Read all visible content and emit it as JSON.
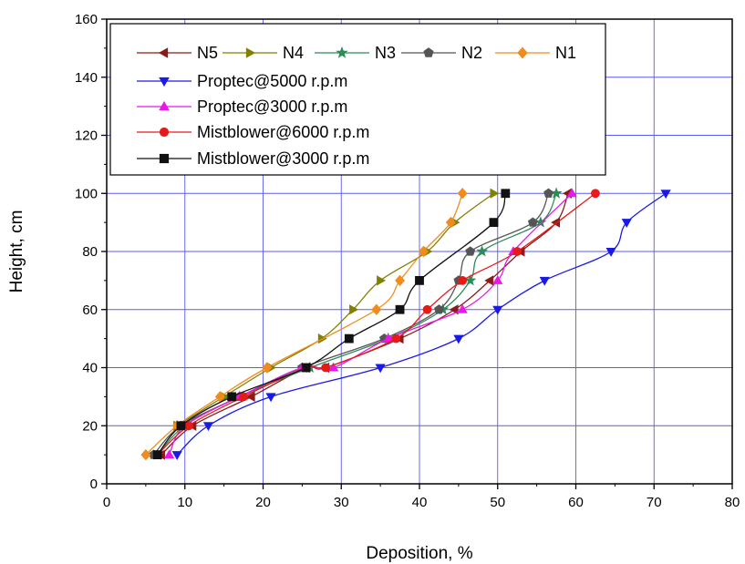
{
  "chart_data": {
    "type": "line",
    "xlabel": "Deposition, %",
    "ylabel": "Height, cm",
    "xlim": [
      0,
      80
    ],
    "ylim": [
      0,
      160
    ],
    "xticks": [
      0,
      10,
      20,
      30,
      40,
      50,
      60,
      70,
      80
    ],
    "yticks": [
      0,
      20,
      40,
      60,
      80,
      100,
      120,
      140,
      160
    ],
    "grid": true,
    "legend_position": "top-left",
    "series": [
      {
        "name": "N5",
        "color": "#8B1A1A",
        "marker": "triangle-left",
        "x": [
          7,
          11,
          18.5,
          25.5,
          28,
          37.5,
          44.5,
          49,
          53,
          57.5,
          59
        ],
        "y": [
          10,
          20,
          30,
          40,
          40,
          50,
          60,
          70,
          80,
          90,
          100
        ]
      },
      {
        "name": "N4",
        "color": "#808000",
        "marker": "triangle-right",
        "x": [
          9,
          15,
          21,
          27.5,
          31.5,
          35,
          41,
          44.5,
          49.5
        ],
        "y": [
          20,
          30,
          40,
          50,
          60,
          70,
          80,
          90,
          100
        ]
      },
      {
        "name": "N3",
        "color": "#2E8B57",
        "marker": "star",
        "x": [
          6.5,
          10,
          17,
          26,
          36,
          43,
          46.5,
          48,
          55.5,
          57.5
        ],
        "y": [
          10,
          20,
          30,
          40,
          50,
          60,
          70,
          80,
          90,
          100
        ]
      },
      {
        "name": "N2",
        "color": "#555555",
        "marker": "pentagon",
        "x": [
          6,
          9.5,
          17,
          25,
          35.5,
          42.5,
          45,
          46.5,
          54.5,
          56.5
        ],
        "y": [
          10,
          20,
          30,
          40,
          50,
          60,
          70,
          80,
          90,
          100
        ]
      },
      {
        "name": "N1",
        "color": "#F08C1E",
        "marker": "diamond",
        "x": [
          5,
          9,
          14.5,
          20.5,
          34.5,
          37.5,
          40.5,
          44,
          45.5
        ],
        "y": [
          10,
          20,
          30,
          40,
          60,
          70,
          80,
          90,
          100
        ]
      },
      {
        "name": "Proptec@5000 r.p.m",
        "color": "#1A1AE6",
        "marker": "triangle-down",
        "x": [
          9,
          13,
          21,
          35,
          45,
          50,
          56,
          64.5,
          66.5,
          71.5
        ],
        "y": [
          10,
          20,
          30,
          40,
          50,
          60,
          70,
          80,
          90,
          100
        ]
      },
      {
        "name": "Proptec@3000 r.p.m",
        "color": "#E619E6",
        "marker": "triangle-up",
        "x": [
          8,
          10,
          17,
          25,
          29,
          36,
          45.5,
          50,
          52,
          59.5
        ],
        "y": [
          10,
          20,
          30,
          40,
          40,
          50,
          60,
          70,
          80,
          100
        ]
      },
      {
        "name": "Mistblower@6000 r.p.m",
        "color": "#E61A1A",
        "marker": "circle",
        "x": [
          6.5,
          10.5,
          17.5,
          25.5,
          28,
          37,
          41,
          45.5,
          52.5,
          62.5
        ],
        "y": [
          10,
          20,
          30,
          40,
          40,
          50,
          60,
          70,
          80,
          100
        ]
      },
      {
        "name": "Mistblower@3000 r.p.m",
        "color": "#111111",
        "marker": "square",
        "x": [
          6.5,
          9.5,
          16,
          25.5,
          31,
          37.5,
          40,
          49.5,
          51
        ],
        "y": [
          10,
          20,
          30,
          40,
          50,
          60,
          70,
          90,
          100
        ]
      }
    ]
  }
}
